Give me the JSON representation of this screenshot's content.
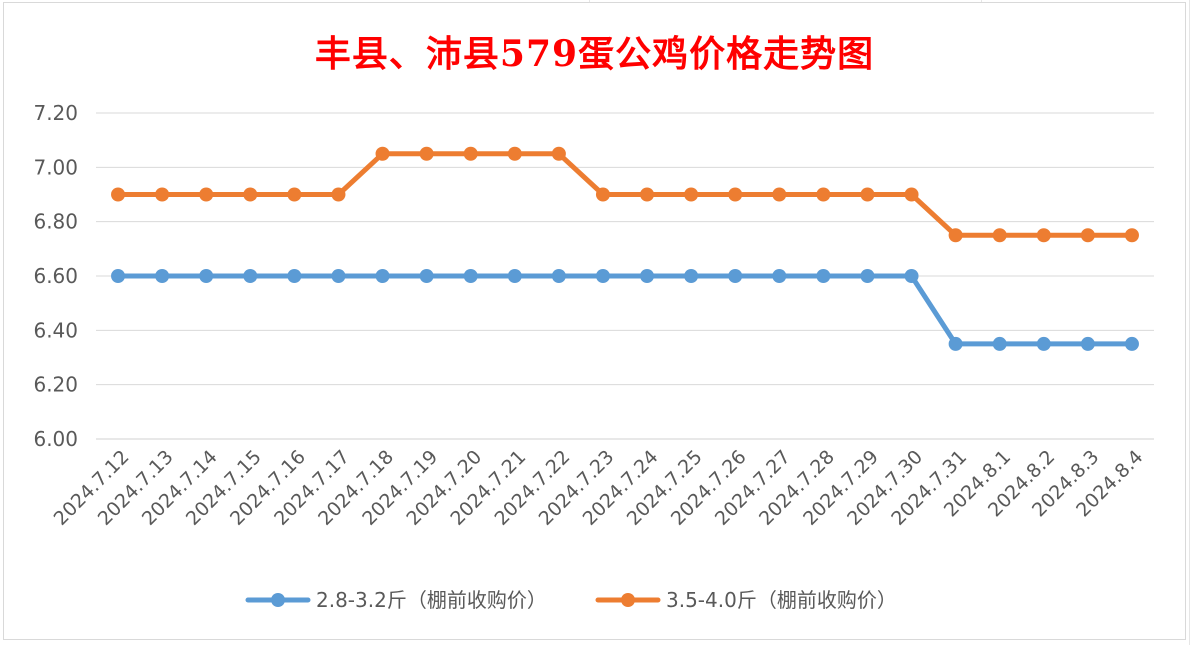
{
  "chart_data": {
    "type": "line",
    "title": "丰县、沛县579蛋公鸡价格走势图",
    "xlabel": "",
    "ylabel": "",
    "ylim": [
      6.0,
      7.2
    ],
    "y_ticks": [
      "6.00",
      "6.20",
      "6.40",
      "6.60",
      "6.80",
      "7.00",
      "7.20"
    ],
    "grid": true,
    "legend_position": "bottom",
    "categories": [
      "2024.7.12",
      "2024.7.13",
      "2024.7.14",
      "2024.7.15",
      "2024.7.16",
      "2024.7.17",
      "2024.7.18",
      "2024.7.19",
      "2024.7.20",
      "2024.7.21",
      "2024.7.22",
      "2024.7.23",
      "2024.7.24",
      "2024.7.25",
      "2024.7.26",
      "2024.7.27",
      "2024.7.28",
      "2024.7.29",
      "2024.7.30",
      "2024.7.31",
      "2024.8.1",
      "2024.8.2",
      "2024.8.3",
      "2024.8.4"
    ],
    "series": [
      {
        "name": "2.8-3.2斤（棚前收购价）",
        "color": "#5b9bd5",
        "values": [
          6.6,
          6.6,
          6.6,
          6.6,
          6.6,
          6.6,
          6.6,
          6.6,
          6.6,
          6.6,
          6.6,
          6.6,
          6.6,
          6.6,
          6.6,
          6.6,
          6.6,
          6.6,
          6.6,
          6.35,
          6.35,
          6.35,
          6.35,
          6.35
        ]
      },
      {
        "name": "3.5-4.0斤（棚前收购价）",
        "color": "#ed7d31",
        "values": [
          6.9,
          6.9,
          6.9,
          6.9,
          6.9,
          6.9,
          7.05,
          7.05,
          7.05,
          7.05,
          7.05,
          6.9,
          6.9,
          6.9,
          6.9,
          6.9,
          6.9,
          6.9,
          6.9,
          6.75,
          6.75,
          6.75,
          6.75,
          6.75
        ]
      }
    ]
  }
}
